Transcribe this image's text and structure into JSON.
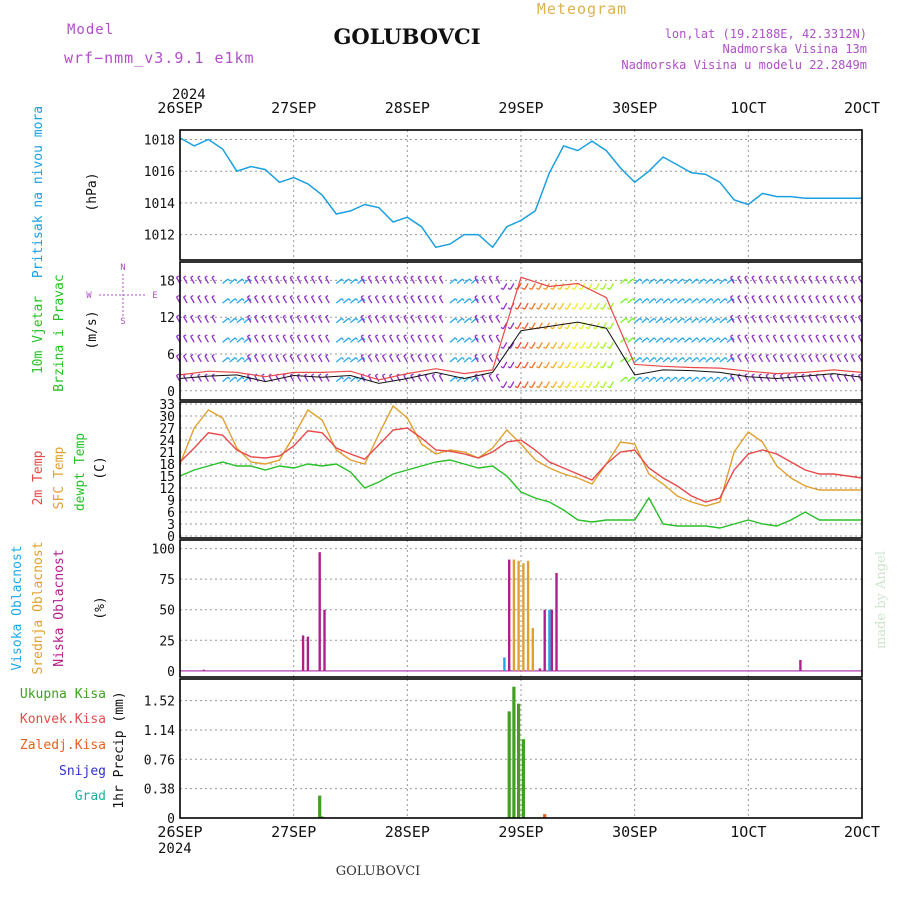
{
  "header": {
    "model_label": "Model",
    "model_name": "wrf−nmm_v3.9.1 e1km",
    "station": "GOLUBOVCI",
    "meteogram": "Meteogram",
    "lonlat": "lon,lat (19.2188E, 42.3312N)",
    "altitude": "Nadmorska Visina 13m",
    "model_altitude": "Nadmorska Visina u modelu 22.2849m"
  },
  "footer": {
    "station": "GOLUBOVCI",
    "credit": "made by Angel"
  },
  "colors": {
    "pressure": "#1aa0e0",
    "temp2m": "#e84a4a",
    "sfc": "#e0a030",
    "dewpt": "#28c028",
    "high_cloud": "#20a8e8",
    "mid_cloud": "#e0a030",
    "low_cloud": "#b0208c",
    "total_precip": "#40a020",
    "conv_precip": "#c03030",
    "freezing": "#e86020",
    "snow": "#3030d0",
    "hail": "#20b0a0",
    "title": "#ddb050",
    "model_text": "#b050c8"
  },
  "chart_data": [
    {
      "type": "line",
      "name": "sea-level-pressure",
      "ylabel": "Pritisak na nivou mora",
      "unit": "(hPa)",
      "x_ticks_top": [
        "26SEP",
        "27SEP",
        "28SEP",
        "29SEP",
        "30SEP",
        "1OCT",
        "2OCT"
      ],
      "year_top": "2024",
      "yticks": [
        1012,
        1014,
        1016,
        1018
      ],
      "ylim": [
        1010.4,
        1018.6
      ],
      "x": [
        0,
        3,
        6,
        9,
        12,
        15,
        18,
        21,
        24,
        27,
        30,
        33,
        36,
        39,
        42,
        45,
        48,
        51,
        54,
        57,
        60,
        63,
        66,
        69,
        72,
        75,
        78,
        81,
        84,
        87,
        90,
        93,
        96,
        99,
        102,
        105,
        108,
        111,
        114,
        117,
        120,
        123,
        126,
        129,
        132,
        135,
        138,
        141,
        144
      ],
      "series": [
        {
          "name": "pressure",
          "values": [
            1018.1,
            1017.6,
            1018.0,
            1017.4,
            1016.0,
            1016.3,
            1016.1,
            1015.3,
            1015.6,
            1015.2,
            1014.5,
            1013.3,
            1013.5,
            1013.9,
            1013.7,
            1012.8,
            1013.1,
            1012.5,
            1011.2,
            1011.4,
            1012.0,
            1012.0,
            1011.2,
            1012.5,
            1012.9,
            1013.5,
            1015.9,
            1017.6,
            1017.3,
            1017.9,
            1017.3,
            1016.2,
            1015.3,
            1016.0,
            1016.9,
            1016.4,
            1015.9,
            1015.8,
            1015.3,
            1014.2,
            1013.9,
            1014.6,
            1014.4,
            1014.4,
            1014.3,
            1014.3,
            1014.3,
            1014.3,
            1014.3
          ]
        }
      ]
    },
    {
      "type": "line",
      "name": "wind-10m",
      "ylabel_lines": [
        "10m Vjetar",
        "Brzina i Pravac"
      ],
      "unit": "(m/s)",
      "compass": [
        "N",
        "W",
        "E",
        "S"
      ],
      "yticks": [
        0,
        6,
        12,
        18
      ],
      "ylim": [
        -1.5,
        21
      ],
      "x": [
        0,
        6,
        12,
        18,
        24,
        30,
        36,
        42,
        48,
        54,
        60,
        66,
        72,
        78,
        84,
        90,
        96,
        102,
        108,
        114,
        120,
        126,
        132,
        138,
        144
      ],
      "series": [
        {
          "name": "speed",
          "values": [
            2.0,
            2.4,
            2.6,
            1.5,
            2.5,
            2.2,
            2.5,
            1.2,
            2.0,
            3.0,
            2.0,
            3.0,
            9.8,
            10.5,
            11.2,
            10.2,
            2.6,
            3.4,
            3.3,
            3.0,
            2.3,
            2.0,
            2.4,
            2.8,
            2.2
          ]
        },
        {
          "name": "gust",
          "values": [
            2.6,
            3.2,
            3.0,
            2.3,
            3.0,
            3.0,
            3.2,
            1.8,
            2.8,
            3.6,
            2.8,
            3.4,
            18.5,
            17.0,
            17.5,
            15.2,
            4.3,
            4.0,
            3.8,
            3.7,
            3.2,
            2.8,
            3.0,
            3.4,
            3.0
          ]
        }
      ],
      "direction_deg": [
        330,
        330,
        50,
        330,
        330,
        330,
        50,
        330,
        330,
        330,
        50,
        330,
        210,
        210,
        210,
        210,
        50,
        50,
        50,
        50,
        330,
        330,
        330,
        330,
        330
      ]
    },
    {
      "type": "line",
      "name": "temperature",
      "ylabel_lines": [
        "2m Temp",
        "SFC Temp",
        "dewpt Temp"
      ],
      "unit": "(C)",
      "yticks": [
        0,
        3,
        6,
        9,
        12,
        15,
        18,
        21,
        24,
        27,
        30,
        33
      ],
      "ylim": [
        -0.5,
        33.5
      ],
      "x": [
        0,
        3,
        6,
        9,
        12,
        15,
        18,
        21,
        24,
        27,
        30,
        33,
        36,
        39,
        42,
        45,
        48,
        51,
        54,
        57,
        60,
        63,
        66,
        69,
        72,
        75,
        78,
        81,
        84,
        87,
        90,
        93,
        96,
        99,
        102,
        105,
        108,
        111,
        114,
        117,
        120,
        123,
        126,
        129,
        132,
        135,
        138,
        141,
        144
      ],
      "series": [
        {
          "name": "2m Temp",
          "values": [
            18.5,
            22.0,
            25.8,
            25.2,
            21.5,
            19.8,
            19.5,
            20.0,
            22.5,
            26.3,
            25.8,
            22.0,
            20.5,
            19.2,
            22.8,
            26.5,
            27.0,
            24.5,
            21.5,
            21.2,
            20.5,
            19.5,
            21.0,
            23.5,
            24.0,
            21.5,
            18.5,
            17.0,
            15.5,
            14.0,
            18.0,
            21.0,
            21.5,
            17.0,
            14.5,
            12.5,
            10.0,
            8.5,
            9.5,
            16.5,
            20.5,
            21.5,
            20.5,
            18.5,
            16.5,
            15.5,
            15.5,
            15.0,
            14.5
          ]
        },
        {
          "name": "SFC Temp",
          "values": [
            18.0,
            27.0,
            31.5,
            29.5,
            22.0,
            18.5,
            18.0,
            19.0,
            25.0,
            31.5,
            29.0,
            21.5,
            19.0,
            18.0,
            25.5,
            32.5,
            29.5,
            23.0,
            20.5,
            21.5,
            21.0,
            19.5,
            22.0,
            26.5,
            23.0,
            19.0,
            17.0,
            15.5,
            14.5,
            13.0,
            18.0,
            23.5,
            23.0,
            15.5,
            13.0,
            10.0,
            8.5,
            7.5,
            8.5,
            21.0,
            26.0,
            23.5,
            17.5,
            14.5,
            12.5,
            11.5,
            11.5,
            11.5,
            11.5
          ]
        },
        {
          "name": "dewpt Temp",
          "values": [
            15.0,
            16.5,
            17.5,
            18.5,
            17.5,
            17.5,
            16.5,
            17.5,
            17.0,
            18.0,
            17.5,
            18.0,
            16.0,
            12.0,
            13.5,
            15.5,
            16.5,
            17.5,
            18.5,
            19.0,
            18.0,
            17.0,
            17.5,
            15.0,
            11.0,
            9.5,
            8.5,
            6.5,
            4.0,
            3.5,
            4.0,
            4.0,
            4.0,
            9.5,
            3.0,
            2.5,
            2.5,
            2.5,
            2.0,
            3.0,
            4.0,
            3.0,
            2.5,
            4.0,
            6.0,
            4.0,
            4.0,
            4.0,
            4.0
          ]
        }
      ]
    },
    {
      "type": "bar",
      "name": "cloud-cover",
      "ylabel_lines": [
        "Visoka Oblacnost",
        "Srednja Oblacnost",
        "Niska Oblacnost"
      ],
      "unit": "(%)",
      "yticks": [
        0,
        25,
        50,
        75,
        100
      ],
      "ylim": [
        -5,
        107
      ],
      "bars": [
        {
          "x": 5,
          "layer": "low",
          "value": 1
        },
        {
          "x": 26,
          "layer": "low",
          "value": 29
        },
        {
          "x": 27,
          "layer": "low",
          "value": 28
        },
        {
          "x": 29.5,
          "layer": "low",
          "value": 97
        },
        {
          "x": 30.5,
          "layer": "low",
          "value": 50
        },
        {
          "x": 68.5,
          "layer": "high",
          "value": 11
        },
        {
          "x": 69.5,
          "layer": "low",
          "value": 91
        },
        {
          "x": 70.5,
          "layer": "mid",
          "value": 91
        },
        {
          "x": 71.5,
          "layer": "mid",
          "value": 90
        },
        {
          "x": 72.5,
          "layer": "mid",
          "value": 88
        },
        {
          "x": 73.5,
          "layer": "mid",
          "value": 90
        },
        {
          "x": 74.5,
          "layer": "mid",
          "value": 35
        },
        {
          "x": 76,
          "layer": "low",
          "value": 2
        },
        {
          "x": 77,
          "layer": "low",
          "value": 50
        },
        {
          "x": 78,
          "layer": "high",
          "value": 50
        },
        {
          "x": 78.5,
          "layer": "low",
          "value": 50
        },
        {
          "x": 79.5,
          "layer": "low",
          "value": 80
        },
        {
          "x": 131,
          "layer": "low",
          "value": 9
        }
      ]
    },
    {
      "type": "bar",
      "name": "precipitation",
      "ylabel": "1hr Precip (mm)",
      "legend": [
        "Ukupna Kisa",
        "Konvek.Kisa",
        "Zaledj.Kisa",
        "Snijeg",
        "Grad"
      ],
      "yticks": [
        0,
        0.38,
        0.76,
        1.14,
        1.52
      ],
      "ylim": [
        0,
        1.8
      ],
      "x_ticks_bottom": [
        "26SEP",
        "27SEP",
        "28SEP",
        "29SEP",
        "30SEP",
        "1OCT",
        "2OCT"
      ],
      "year_bottom": "2024",
      "bars": [
        {
          "x": 29.5,
          "layer": "total",
          "value": 0.29
        },
        {
          "x": 30,
          "layer": "total",
          "value": 0.02
        },
        {
          "x": 69.5,
          "layer": "total",
          "value": 1.38
        },
        {
          "x": 70.5,
          "layer": "total",
          "value": 1.7
        },
        {
          "x": 71.5,
          "layer": "total",
          "value": 1.48
        },
        {
          "x": 72.5,
          "layer": "total",
          "value": 1.02
        },
        {
          "x": 77,
          "layer": "freezing",
          "value": 0.05
        }
      ]
    }
  ]
}
